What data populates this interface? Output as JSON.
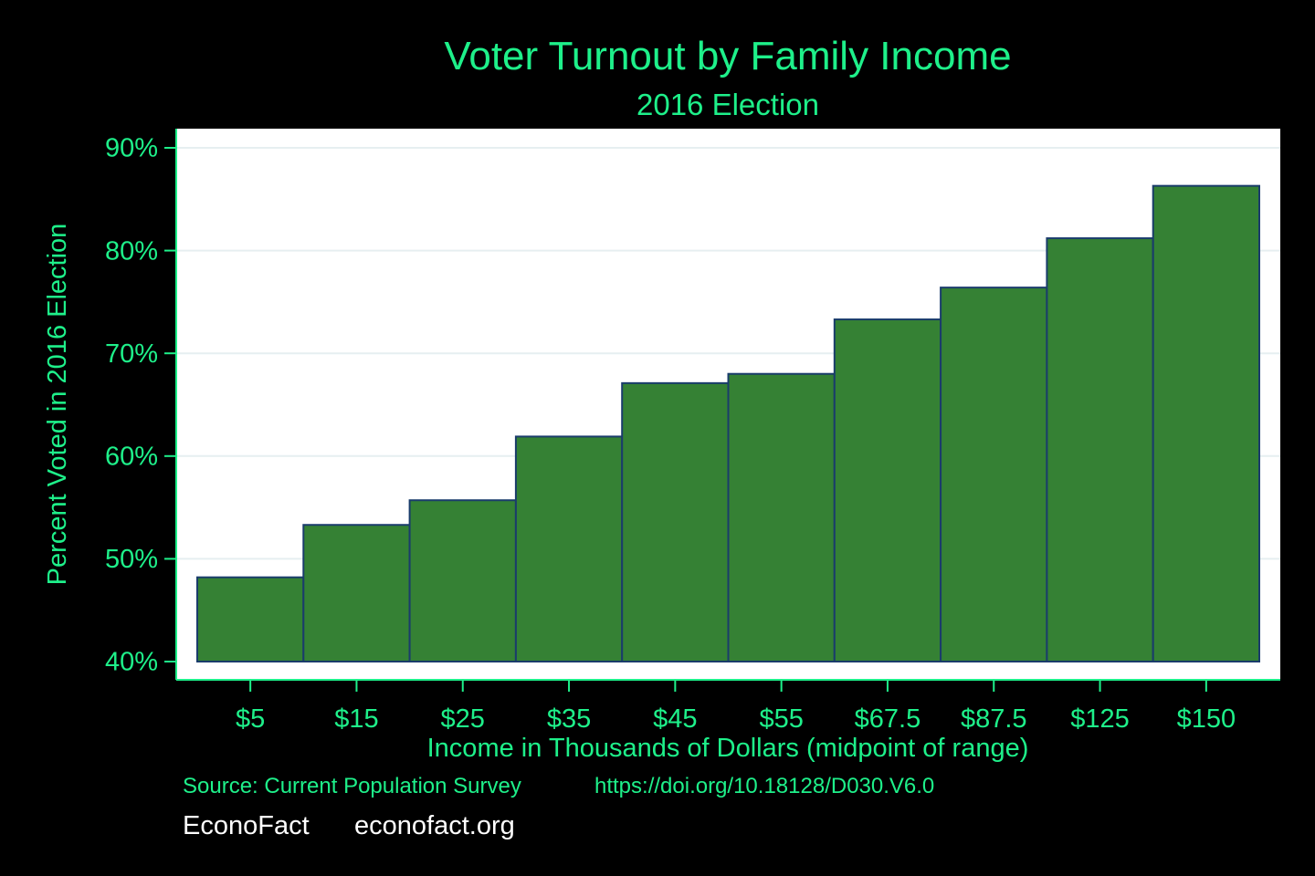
{
  "colors": {
    "background": "#000000",
    "plot_background": "#ffffff",
    "text": "#1ef08a",
    "bar_fill": "#358134",
    "bar_stroke": "#1a3c6b",
    "gridline": "#e6eff1",
    "brand_text": "#ffffff"
  },
  "chart_data": {
    "type": "bar",
    "title": "Voter Turnout by Family Income",
    "subtitle": "2016 Election",
    "xlabel": "Income in Thousands of Dollars (midpoint of range)",
    "ylabel": "Percent Voted in 2016 Election",
    "categories": [
      "$5",
      "$15",
      "$25",
      "$35",
      "$45",
      "$55",
      "$67.5",
      "$87.5",
      "$125",
      "$150"
    ],
    "values": [
      48.2,
      53.3,
      55.7,
      61.9,
      67.1,
      68.0,
      73.3,
      76.4,
      81.2,
      86.3
    ],
    "ylim": [
      40,
      90
    ],
    "yticks": [
      40,
      50,
      60,
      70,
      80,
      90
    ],
    "ytick_labels": [
      "40%",
      "50%",
      "60%",
      "70%",
      "80%",
      "90%"
    ],
    "grid": true,
    "legend": false
  },
  "footer": {
    "source": "Source: Current Population Survey",
    "doi": "https://doi.org/10.18128/D030.V6.0",
    "brand": "EconoFact",
    "website": "econofact.org"
  }
}
